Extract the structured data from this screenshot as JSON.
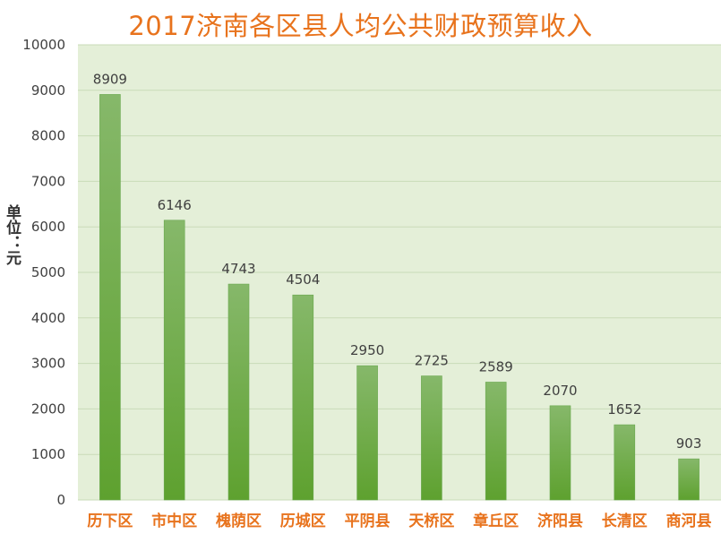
{
  "chart_data": {
    "type": "bar",
    "title": "2017济南各区县人均公共财政预算收入",
    "ylabel": "单位：元",
    "xlabel": "",
    "categories": [
      "历下区",
      "市中区",
      "槐荫区",
      "历城区",
      "平阴县",
      "天桥区",
      "章丘区",
      "济阳县",
      "长清区",
      "商河县"
    ],
    "values": [
      8909,
      6146,
      4743,
      4504,
      2950,
      2725,
      2589,
      2070,
      1652,
      903
    ],
    "ylim": [
      0,
      10000
    ],
    "yticks": [
      0,
      1000,
      2000,
      3000,
      4000,
      5000,
      6000,
      7000,
      8000,
      9000,
      10000
    ],
    "grid": true,
    "legend": "none",
    "colors": {
      "plot_background": "#e4efd8",
      "bar_top": "#86b86a",
      "bar_bottom": "#5ea12f",
      "title": "#e8731d",
      "category_labels": "#e8731d",
      "gridline": "#c9dbb8"
    }
  }
}
